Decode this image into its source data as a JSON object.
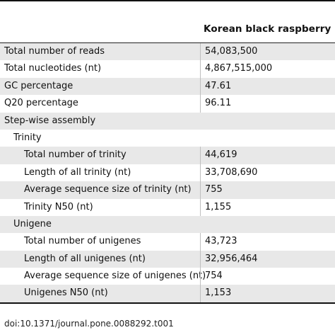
{
  "table": {
    "column_header": "Korean black raspberry",
    "rows": [
      {
        "label": "Total number of reads",
        "value": "54,083,500"
      },
      {
        "label": "Total nucleotides (nt)",
        "value": "4,867,515,000"
      },
      {
        "label": "GC percentage",
        "value": "47.61"
      },
      {
        "label": "Q20 percentage",
        "value": "96.11"
      },
      {
        "label": "Step-wise assembly",
        "value": ""
      },
      {
        "label": "Trinity",
        "value": ""
      },
      {
        "label": "Total number of trinity",
        "value": "44,619"
      },
      {
        "label": "Length of all trinity (nt)",
        "value": "33,708,690"
      },
      {
        "label": "Average sequence size of trinity (nt)",
        "value": "755"
      },
      {
        "label": "Trinity N50 (nt)",
        "value": "1,155"
      },
      {
        "label": "Unigene",
        "value": ""
      },
      {
        "label": "Total number of unigenes",
        "value": "43,723"
      },
      {
        "label": "Length of all unigenes (nt)",
        "value": "32,956,464"
      },
      {
        "label": "Average sequence size of unigenes (nt)",
        "value": "754"
      },
      {
        "label": "Unigenes N50 (nt)",
        "value": "1,153"
      }
    ]
  },
  "footer": {
    "doi": "doi:10.1371/journal.pone.0088292.t001"
  },
  "colors": {
    "shaded_row": "#e8e8e8",
    "rule": "#222222"
  }
}
